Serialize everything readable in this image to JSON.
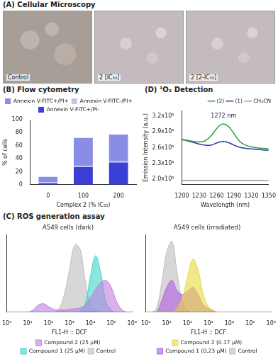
{
  "panel_a": {
    "title": "(A) Cellular Microscopy",
    "images": [
      "Control",
      "2 [IC₅₀]",
      "2 [2-IC₅₀]"
    ]
  },
  "panel_c": {
    "title": "(C) ROS generation assay"
  },
  "chart_data": [
    {
      "type": "bar",
      "title": "(B) Flow cytometry",
      "stacked": true,
      "grid": false,
      "legend": "top",
      "x_label": "Complex 2 (% IC₅₀)",
      "y_label": "% of cells",
      "categories": [
        "0",
        "100",
        "200"
      ],
      "ylim": [
        0,
        100
      ],
      "yticks": [
        0,
        20,
        40,
        60,
        80,
        100
      ],
      "series": [
        {
          "name": "Annexin V-FITC+/PI-",
          "color": "#3b3fd6",
          "values": [
            2,
            27,
            34
          ]
        },
        {
          "name": "Annexin V-FITC-/PI+",
          "color": "#c5c6ea",
          "values": [
            2,
            2,
            2
          ]
        },
        {
          "name": "Annexin V-FITC+/PI+",
          "color": "#8a8de6",
          "values": [
            8,
            43,
            41
          ]
        }
      ]
    },
    {
      "type": "line",
      "title": "(D) ¹O₂ Detection",
      "grid": false,
      "legend": "top-right",
      "x_label": "Wavelength (nm)",
      "y_label": "Emission Intensity (a.u.)",
      "x": [
        1200,
        1210,
        1220,
        1230,
        1240,
        1250,
        1260,
        1270,
        1280,
        1290,
        1300,
        1310,
        1320,
        1330,
        1340,
        1350
      ],
      "xlim": [
        1200,
        1350
      ],
      "xticks": [
        1200,
        1230,
        1260,
        1290,
        1320,
        1350
      ],
      "ylim": [
        190000,
        330000
      ],
      "yticks": [
        {
          "value": 200000,
          "label": "2.0x10⁵"
        },
        {
          "value": 230000,
          "label": "2.3x10⁵"
        },
        {
          "value": 260000,
          "label": "2.6x10⁵"
        },
        {
          "value": 290000,
          "label": "2.9x10⁵"
        },
        {
          "value": 320000,
          "label": "3.2x10⁵"
        }
      ],
      "annotations": [
        {
          "text": "1272 nm",
          "x": 1272,
          "y": 314000
        }
      ],
      "series": [
        {
          "name": "(2)",
          "color": "#2e9e3a",
          "values": [
            275000,
            274000,
            272000,
            271000,
            273000,
            282000,
            296000,
            305000,
            301000,
            287000,
            272000,
            265000,
            262000,
            260000,
            259000,
            258000
          ]
        },
        {
          "name": "(1)",
          "color": "#2c3fa8",
          "values": [
            276000,
            273000,
            270000,
            267000,
            265000,
            265000,
            269000,
            272000,
            270000,
            265000,
            261000,
            259000,
            258000,
            257000,
            256000,
            255000
          ]
        },
        {
          "name": "CH₃CN",
          "color": "#9a9a9a",
          "values": [
            198000,
            198000,
            198000,
            198000,
            198000,
            198000,
            198000,
            198000,
            198000,
            198000,
            198000,
            198000,
            198000,
            198000,
            198000,
            198000
          ]
        }
      ]
    },
    {
      "type": "area",
      "title": "A549 cells (dark)",
      "log": "x",
      "grid": false,
      "legend": "bottom",
      "tick_labels": "x",
      "x_label": "FL1-H :: DCF",
      "x": [
        1,
        1.78,
        3.16,
        5.62,
        10,
        17.8,
        31.6,
        56.2,
        100,
        178,
        316,
        562,
        1000,
        1778,
        3162,
        5623,
        10000,
        17783,
        31623,
        56234,
        100000,
        177828,
        316228,
        562341,
        1000000
      ],
      "xlim": [
        1,
        1000000
      ],
      "xticks": [
        {
          "value": 1,
          "label": "10⁰"
        },
        {
          "value": 10,
          "label": "10¹"
        },
        {
          "value": 100,
          "label": "10²"
        },
        {
          "value": 1000,
          "label": "10³"
        },
        {
          "value": 10000,
          "label": "10⁴"
        },
        {
          "value": 100000,
          "label": "10⁵"
        },
        {
          "value": 1000000,
          "label": "10⁶"
        }
      ],
      "ylim": [
        0,
        110
      ],
      "series": [
        {
          "name": "Compound 2 (25 µM)",
          "color": "#c07ee0",
          "values": [
            0,
            0,
            0,
            0,
            0,
            3,
            10,
            12,
            8,
            4,
            3,
            3,
            4,
            5,
            6,
            10,
            20,
            32,
            42,
            45,
            35,
            15,
            4,
            0,
            0
          ]
        },
        {
          "name": "Compound 1 (25 µM)",
          "color": "#3fd2cc",
          "values": [
            0,
            0,
            0,
            0,
            0,
            0,
            0,
            0,
            0,
            0,
            0,
            0,
            0,
            0,
            2,
            12,
            50,
            80,
            55,
            15,
            3,
            0,
            0,
            0,
            0
          ]
        },
        {
          "name": "Control",
          "color": "#bdbdbd",
          "values": [
            0,
            0,
            0,
            0,
            0,
            0,
            0,
            0,
            0,
            0,
            5,
            25,
            60,
            95,
            90,
            45,
            12,
            3,
            0,
            0,
            0,
            0,
            0,
            0,
            0
          ]
        }
      ]
    },
    {
      "type": "area",
      "title": "A549 cells (irradiated)",
      "log": "x",
      "grid": false,
      "legend": "bottom",
      "tick_labels": "x",
      "x_label": "FL1-H :: DCF",
      "x": [
        1,
        1.78,
        3.16,
        5.62,
        10,
        17.8,
        31.6,
        56.2,
        100,
        178,
        316,
        562,
        1000,
        1778,
        3162,
        5623,
        10000,
        17783,
        31623,
        56234,
        100000,
        177828,
        316228,
        562341,
        1000000
      ],
      "xlim": [
        1,
        1000000
      ],
      "xticks": [
        {
          "value": 1,
          "label": "10⁰"
        },
        {
          "value": 10,
          "label": "10¹"
        },
        {
          "value": 100,
          "label": "10²"
        },
        {
          "value": 1000,
          "label": "10³"
        },
        {
          "value": 10000,
          "label": "10⁴"
        },
        {
          "value": 100000,
          "label": "10⁵"
        },
        {
          "value": 1000000,
          "label": "10⁶"
        }
      ],
      "ylim": [
        0,
        110
      ],
      "series": [
        {
          "name": "Compound 2 (0.17 µM)",
          "color": "#e8d83a",
          "values": [
            0,
            0,
            0,
            0,
            0,
            0,
            5,
            20,
            50,
            75,
            60,
            25,
            8,
            2,
            0,
            0,
            0,
            0,
            0,
            0,
            0,
            0,
            0,
            0,
            0
          ]
        },
        {
          "name": "Compound 1 (0.23 µM)",
          "color": "#b05ee0",
          "values": [
            0,
            0,
            0,
            15,
            35,
            45,
            30,
            25,
            30,
            35,
            25,
            10,
            5,
            2,
            0,
            0,
            0,
            0,
            0,
            0,
            0,
            0,
            0,
            0,
            0
          ]
        },
        {
          "name": "Control",
          "color": "#bdbdbd",
          "values": [
            0,
            0,
            5,
            40,
            85,
            100,
            55,
            15,
            3,
            0,
            0,
            0,
            0,
            0,
            0,
            0,
            0,
            0,
            0,
            0,
            0,
            0,
            0,
            0,
            0
          ]
        }
      ]
    }
  ]
}
